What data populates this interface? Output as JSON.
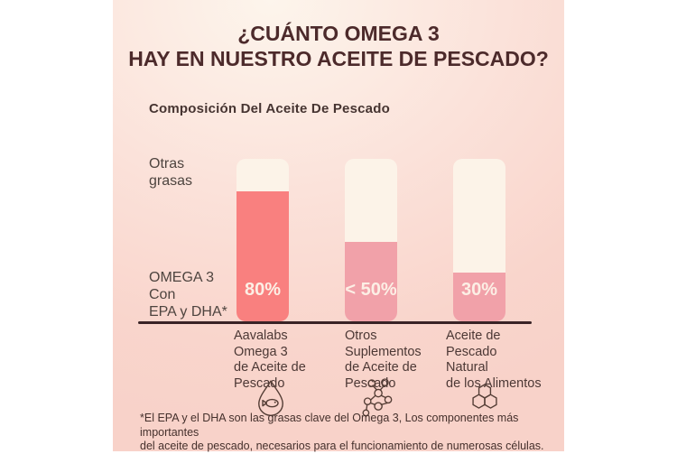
{
  "title": {
    "line1": "¿CUÁNTO OMEGA 3",
    "line2": "HAY EN NUESTRO ACEITE DE PESCADO?"
  },
  "subtitle": "Composición Del Aceite De Pescado",
  "axis_labels": {
    "top_lines": [
      "Otras",
      "grasas"
    ],
    "bottom_lines": [
      "OMEGA 3",
      "Con",
      "EPA y DHA*"
    ]
  },
  "chart_data": {
    "type": "bar",
    "title": "Composición Del Aceite De Pescado",
    "categories": [
      "Aavalabs Omega 3 de Aceite de Pescado",
      "Otros Suplementos de Aceite de Pescado",
      "Aceite de Pescado Natural de los Alimentos"
    ],
    "series": [
      {
        "name": "OMEGA 3 Con EPA y DHA*",
        "values": [
          80,
          49,
          30
        ],
        "data_labels": [
          "80%",
          "< 50%",
          "30%"
        ]
      },
      {
        "name": "Otras grasas",
        "values": [
          20,
          51,
          70
        ]
      }
    ],
    "ylabel": "",
    "xlabel": "",
    "ylim": [
      0,
      100
    ],
    "grid": false,
    "legend_position": "left-axis-annotations"
  },
  "bars": [
    {
      "percent_label": "80%",
      "fill_percent": 80,
      "fill_color": "#f9807f",
      "category_lines": [
        "Aavalabs",
        "Omega 3",
        "de Aceite de",
        "Pescado"
      ],
      "icon": "fish-droplet-icon"
    },
    {
      "percent_label": "< 50%",
      "fill_percent": 49,
      "fill_color": "#f1a1a9",
      "category_lines": [
        "Otros",
        "Suplementos",
        "de Aceite de",
        "Pescado"
      ],
      "icon": "molecule-icon"
    },
    {
      "percent_label": "30%",
      "fill_percent": 30,
      "fill_color": "#f1a1a9",
      "category_lines": [
        "Aceite de",
        "Pescado",
        "Natural",
        "de los Alimentos"
      ],
      "icon": "honeycomb-icon"
    }
  ],
  "footnote": {
    "line1": "*El EPA y el DHA son las grasas clave del Omega 3, Los componentes más importantes",
    "line2": "del aceite de pescado, necesarios para el funcionamiento de numerosas células."
  },
  "colors": {
    "background_cream": "#fdf5ec",
    "background_pink": "#f8d2c9",
    "bar_track": "#fcf3e8",
    "bar_fill_primary": "#f9807f",
    "bar_fill_secondary": "#f1a1a9",
    "percent_text": "#fcefe5",
    "title_text": "#4c2a2b",
    "body_text": "#4c3835",
    "baseline": "#392326",
    "icon_stroke": "#553e36"
  }
}
